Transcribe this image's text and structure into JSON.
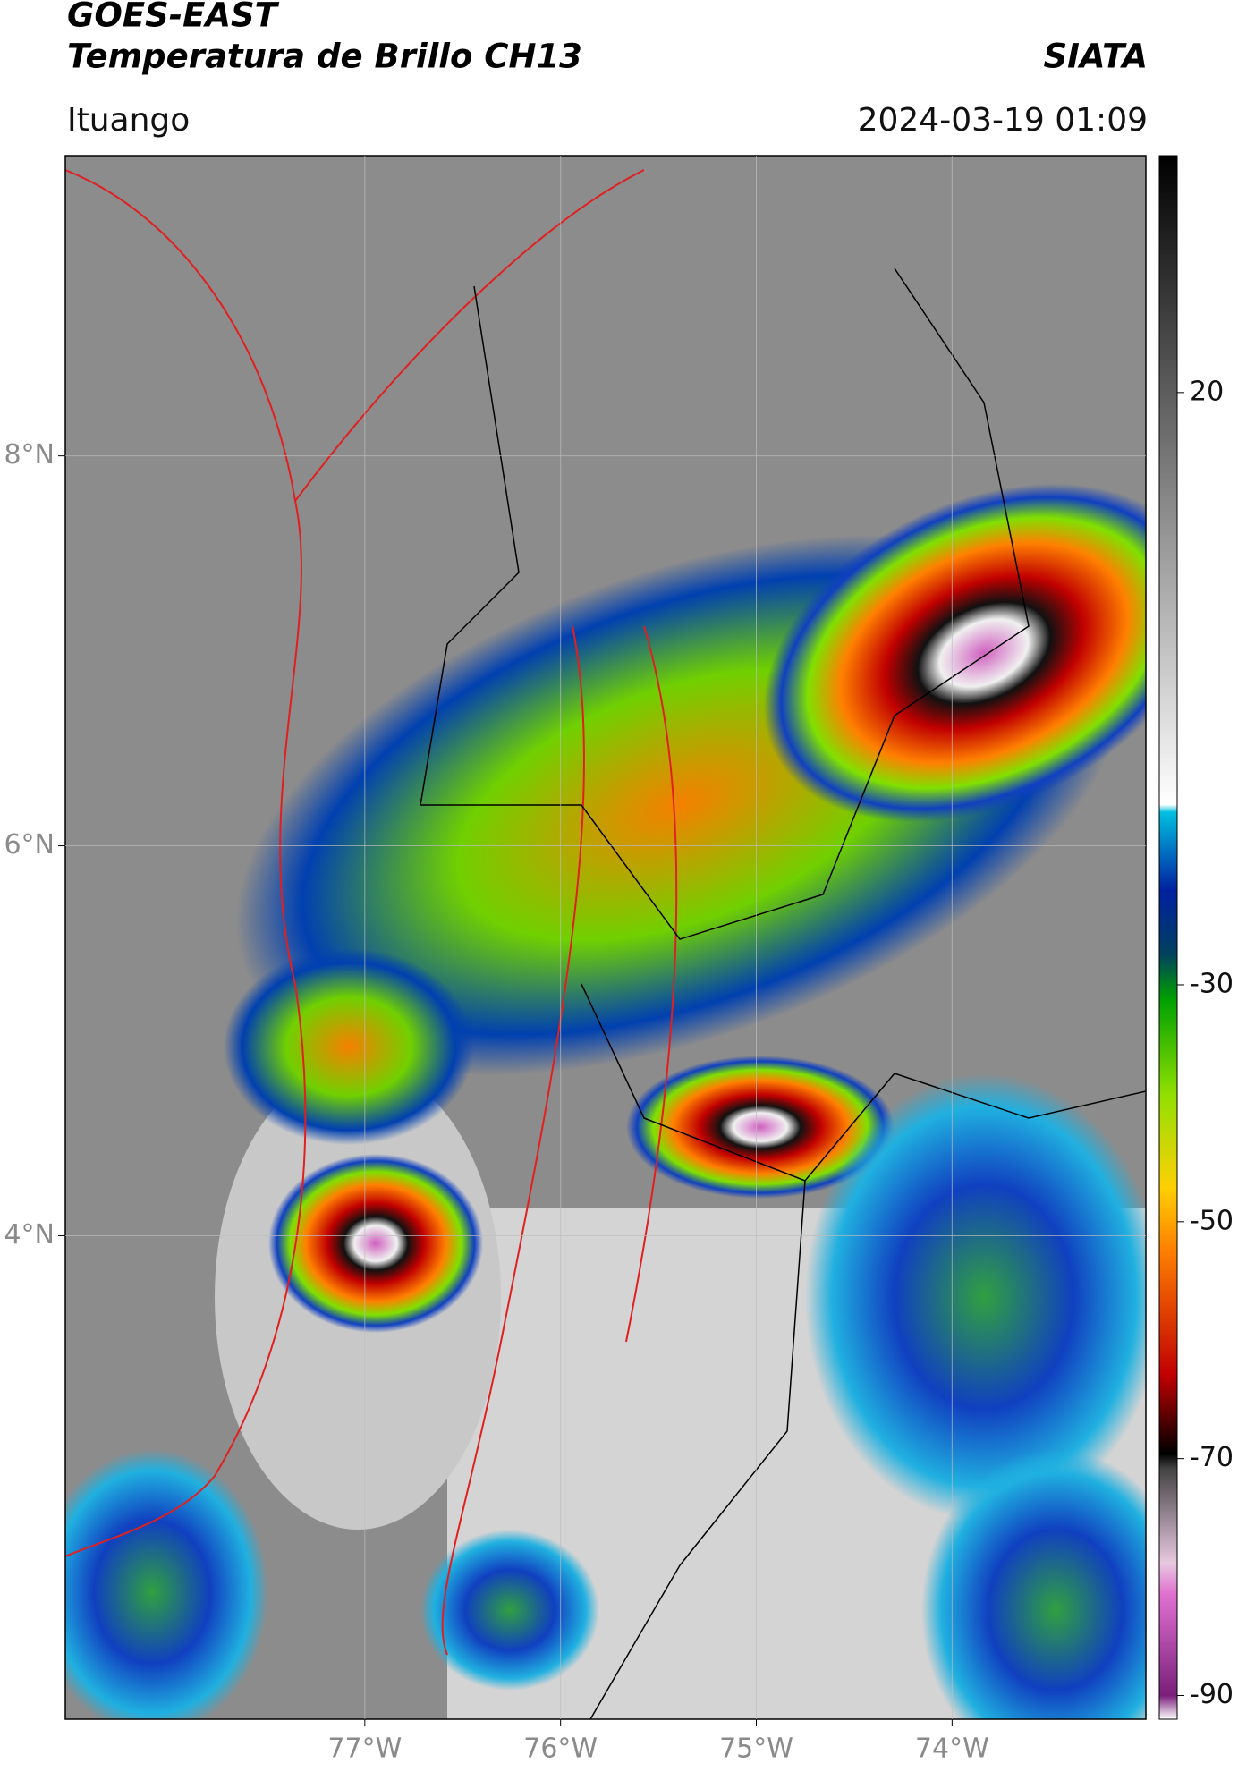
{
  "header": {
    "satellite": "GOES-EAST",
    "title": "Temperatura de Brillo CH13",
    "source": "SIATA",
    "location": "Ituango",
    "datetime": "2024-03-19 01:09"
  },
  "map": {
    "xlim": [
      -78.53,
      -73.01
    ],
    "ylim": [
      1.52,
      9.54
    ],
    "grid": true,
    "xticks": [
      {
        "value": -77,
        "label": "77°W"
      },
      {
        "value": -76,
        "label": "76°W"
      },
      {
        "value": -75,
        "label": "75°W"
      },
      {
        "value": -74,
        "label": "74°W"
      }
    ],
    "yticks": [
      {
        "value": 8,
        "label": "8°N"
      },
      {
        "value": 6,
        "label": "6°N"
      },
      {
        "value": 4,
        "label": "4°N"
      }
    ]
  },
  "colorbar": {
    "lim": [
      -92,
      40
    ],
    "ticks": [
      20,
      -30,
      -50,
      -70,
      -90
    ]
  }
}
